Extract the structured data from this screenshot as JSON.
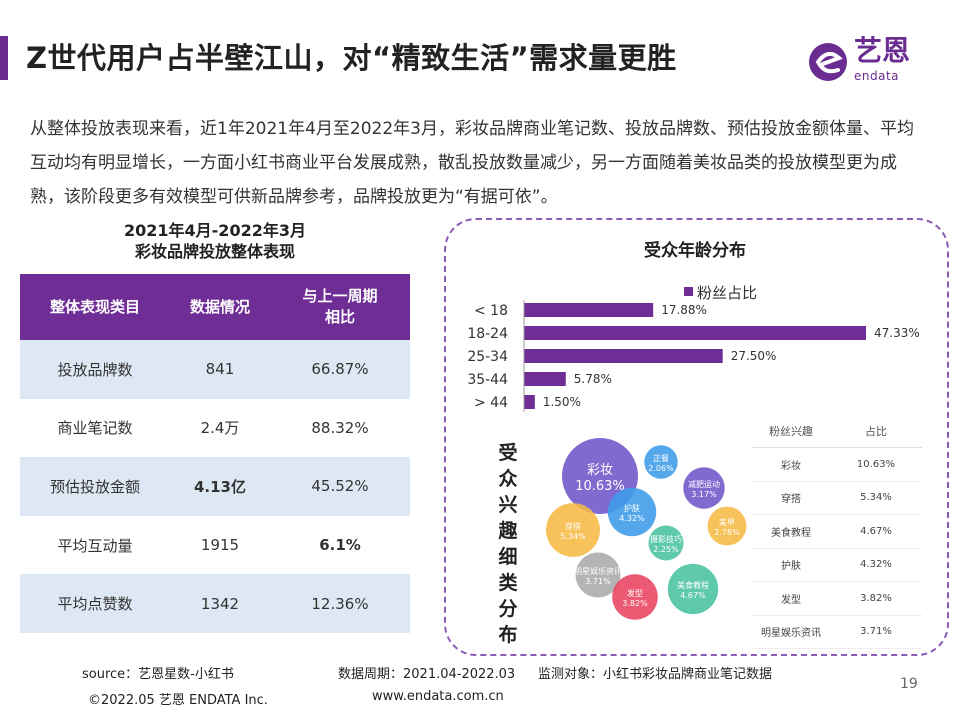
{
  "header": {
    "title": "Z世代用户占半壁江山，对“精致生活”需求量更胜",
    "logo_cn": "艺恩",
    "logo_en": "endata"
  },
  "intro": "从整体投放表现来看，近1年2021年4月至2022年3月，彩妆品牌商业笔记数、投放品牌数、预估投放金额体量、平均互动均有明显增长，一方面小红书商业平台发展成熟，散乱投放数量减少，另一方面随着美妆品类的投放模型更为成熟，该阶段更多有效模型可供新品牌参考，品牌投放更为“有据可依”。",
  "performance": {
    "title_line1": "2021年4月-2022年3月",
    "title_line2": "彩妆品牌投放整体表现",
    "headers": [
      "整体表现类目",
      "数据情况",
      "与上一周期\n相比"
    ],
    "rows": [
      {
        "category": "投放品牌数",
        "value": "841",
        "change": "66.87%",
        "highlight": ""
      },
      {
        "category": "商业笔记数",
        "value": "2.4万",
        "change": "88.32%",
        "highlight": ""
      },
      {
        "category": "预估投放金额",
        "value": "4.13亿",
        "change": "45.52%",
        "highlight": "value"
      },
      {
        "category": "平均互动量",
        "value": "1915",
        "change": "6.1%",
        "highlight": "change"
      },
      {
        "category": "平均点赞数",
        "value": "1342",
        "change": "12.36%",
        "highlight": ""
      }
    ],
    "header_color": "#6f2d96",
    "stripe_color": "#dde8f4",
    "highlight_color": "#e02020"
  },
  "chart_data": [
    {
      "type": "bar",
      "orientation": "horizontal",
      "title": "受众年龄分布",
      "categories": [
        "< 18",
        "18-24",
        "25-34",
        "35-44",
        "> 44"
      ],
      "series": [
        {
          "name": "粉丝占比",
          "values": [
            17.88,
            47.33,
            27.5,
            5.78,
            1.5
          ],
          "labels": [
            "17.88%",
            "47.33%",
            "27.50%",
            "5.78%",
            "1.50%"
          ]
        }
      ],
      "xlim": [
        0,
        47.33
      ],
      "legend": "top",
      "color": "#6f2d96"
    },
    {
      "type": "bubble",
      "title": "受众兴趣细类分布",
      "bubbles": [
        {
          "name": "彩妆",
          "value": "10.63%",
          "size": 10.63,
          "color": "#6e55c9"
        },
        {
          "name": "正餐",
          "value": "2.06%",
          "size": 2.06,
          "color": "#3d9be9"
        },
        {
          "name": "减肥运动",
          "value": "3.17%",
          "size": 3.17,
          "color": "#6e55c9"
        },
        {
          "name": "护肤",
          "value": "4.32%",
          "size": 4.32,
          "color": "#3d9be9"
        },
        {
          "name": "穿搭",
          "value": "5.34%",
          "size": 5.34,
          "color": "#f5b942"
        },
        {
          "name": "摄影技巧",
          "value": "2.25%",
          "size": 2.25,
          "color": "#49c2a1"
        },
        {
          "name": "美甲",
          "value": "2.78%",
          "size": 2.78,
          "color": "#f5b942"
        },
        {
          "name": "明星娱乐资讯",
          "value": "3.71%",
          "size": 3.71,
          "color": "#aaaaaa"
        },
        {
          "name": "美食教程",
          "value": "4.67%",
          "size": 4.67,
          "color": "#49c2a1"
        },
        {
          "name": "发型",
          "value": "3.82%",
          "size": 3.82,
          "color": "#e8435f"
        }
      ]
    },
    {
      "type": "table",
      "headers": [
        "粉丝兴趣",
        "占比"
      ],
      "rows": [
        [
          "彩妆",
          "10.63%"
        ],
        [
          "穿搭",
          "5.34%"
        ],
        [
          "美食教程",
          "4.67%"
        ],
        [
          "护肤",
          "4.32%"
        ],
        [
          "发型",
          "3.82%"
        ],
        [
          "明星娱乐资讯",
          "3.71%"
        ]
      ]
    }
  ],
  "interest_label": "受众兴趣细类分布",
  "footer": {
    "source": "source：艺恩星数-小红书",
    "period": "数据周期：2021.04-2022.03",
    "target": "监测对象：小红书彩妆品牌商业笔记数据",
    "copyright": "©2022.05 艺恩 ENDATA Inc.",
    "website": "www.endata.com.cn",
    "page": "19"
  }
}
